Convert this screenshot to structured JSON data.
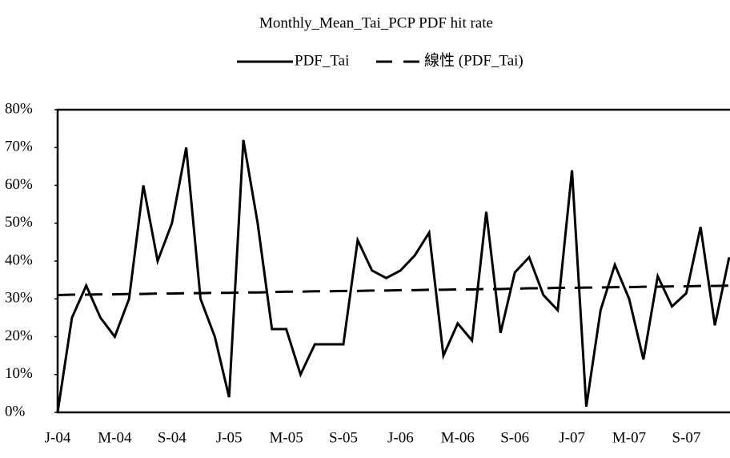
{
  "chart_data": {
    "type": "line",
    "title": "Monthly_Mean_Tai_PCP PDF hit rate",
    "categories": [
      "J-04",
      null,
      null,
      null,
      "M-04",
      null,
      null,
      null,
      "S-04",
      null,
      null,
      null,
      "J-05",
      null,
      null,
      null,
      "M-05",
      null,
      null,
      null,
      "S-05",
      null,
      null,
      null,
      "J-06",
      null,
      null,
      null,
      "M-06",
      null,
      null,
      null,
      "S-06",
      null,
      null,
      null,
      "J-07",
      null,
      null,
      null,
      "M-07",
      null,
      null,
      null,
      "S-07",
      null,
      null,
      null
    ],
    "series": [
      {
        "name": "PDF_Tai",
        "color": "#000000",
        "dash": false,
        "values": [
          0,
          25,
          33.5,
          25,
          20,
          30,
          60,
          40,
          50,
          70,
          30,
          20,
          4,
          72,
          50,
          22,
          22,
          10,
          18,
          18,
          18,
          45.5,
          37.5,
          35.5,
          37.5,
          41.5,
          47.5,
          15,
          23.5,
          19,
          53,
          21,
          37,
          41,
          31,
          27,
          64,
          1.5,
          27,
          39,
          30,
          14,
          36,
          28,
          31.5,
          49,
          23,
          41
        ]
      },
      {
        "name": "線性 (PDF_Tai)",
        "color": "#000000",
        "dash": true,
        "values": [
          31.0,
          31.1,
          31.1,
          31.2,
          31.2,
          31.3,
          31.3,
          31.4,
          31.4,
          31.5,
          31.5,
          31.6,
          31.6,
          31.7,
          31.7,
          31.8,
          31.9,
          31.9,
          32.0,
          32.0,
          32.1,
          32.1,
          32.2,
          32.2,
          32.3,
          32.3,
          32.4,
          32.4,
          32.5,
          32.5,
          32.6,
          32.6,
          32.7,
          32.8,
          32.8,
          32.9,
          32.9,
          33.0,
          33.0,
          33.1,
          33.1,
          33.2,
          33.2,
          33.3,
          33.3,
          33.4,
          33.4,
          33.5
        ]
      }
    ],
    "ylim": [
      0,
      80
    ],
    "yticks": [
      {
        "value": 0,
        "label": "0%"
      },
      {
        "value": 10,
        "label": "10%"
      },
      {
        "value": 20,
        "label": "20%"
      },
      {
        "value": 30,
        "label": "30%"
      },
      {
        "value": 40,
        "label": "40%"
      },
      {
        "value": 50,
        "label": "50%"
      },
      {
        "value": 60,
        "label": "60%"
      },
      {
        "value": 70,
        "label": "70%"
      },
      {
        "value": 80,
        "label": "80%"
      }
    ],
    "grid": false,
    "legend": "top"
  }
}
